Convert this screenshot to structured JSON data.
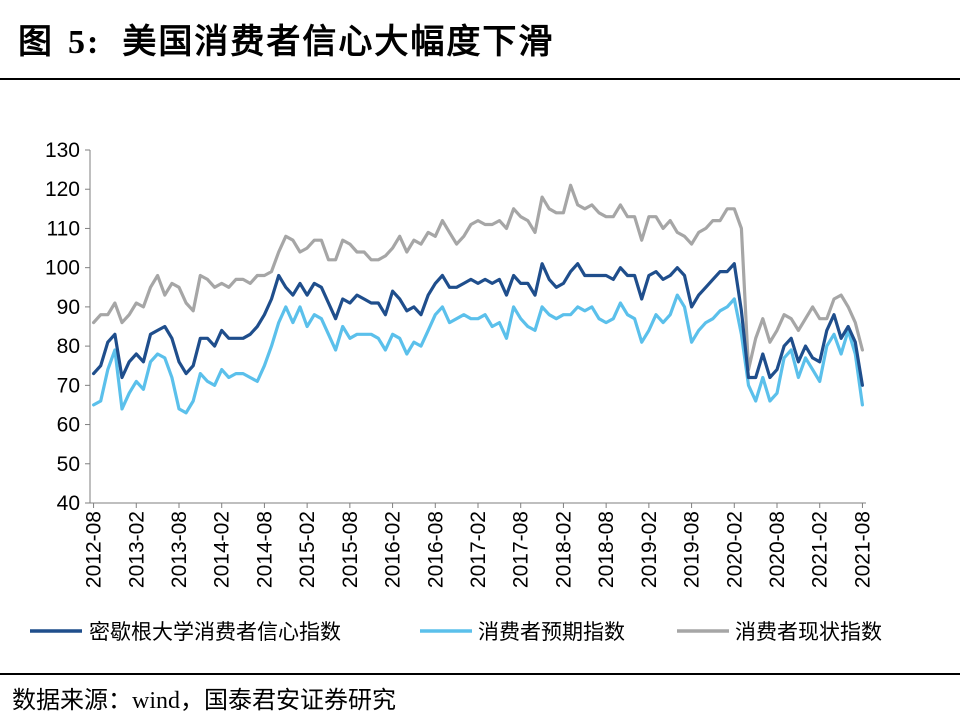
{
  "figure": {
    "label": "图",
    "number": "5:",
    "title": "美国消费者信心大幅度下滑"
  },
  "source": {
    "prefix": "数据来源：",
    "wind": "wind",
    "suffix": "，国泰君安证券研究"
  },
  "chart_data": {
    "type": "line",
    "ylim": [
      40,
      130
    ],
    "yticks": [
      40,
      50,
      60,
      70,
      80,
      90,
      100,
      110,
      120,
      130
    ],
    "xtick_labels": [
      "2012-08",
      "2013-02",
      "2013-08",
      "2014-02",
      "2014-08",
      "2015-02",
      "2015-08",
      "2016-02",
      "2016-08",
      "2017-02",
      "2017-08",
      "2018-02",
      "2018-08",
      "2019-02",
      "2019-08",
      "2020-02",
      "2020-08",
      "2021-02",
      "2021-08"
    ],
    "x": [
      "2012-08",
      "2012-09",
      "2012-10",
      "2012-11",
      "2012-12",
      "2013-01",
      "2013-02",
      "2013-03",
      "2013-04",
      "2013-05",
      "2013-06",
      "2013-07",
      "2013-08",
      "2013-09",
      "2013-10",
      "2013-11",
      "2013-12",
      "2014-01",
      "2014-02",
      "2014-03",
      "2014-04",
      "2014-05",
      "2014-06",
      "2014-07",
      "2014-08",
      "2014-09",
      "2014-10",
      "2014-11",
      "2014-12",
      "2015-01",
      "2015-02",
      "2015-03",
      "2015-04",
      "2015-05",
      "2015-06",
      "2015-07",
      "2015-08",
      "2015-09",
      "2015-10",
      "2015-11",
      "2015-12",
      "2016-01",
      "2016-02",
      "2016-03",
      "2016-04",
      "2016-05",
      "2016-06",
      "2016-07",
      "2016-08",
      "2016-09",
      "2016-10",
      "2016-11",
      "2016-12",
      "2017-01",
      "2017-02",
      "2017-03",
      "2017-04",
      "2017-05",
      "2017-06",
      "2017-07",
      "2017-08",
      "2017-09",
      "2017-10",
      "2017-11",
      "2017-12",
      "2018-01",
      "2018-02",
      "2018-03",
      "2018-04",
      "2018-05",
      "2018-06",
      "2018-07",
      "2018-08",
      "2018-09",
      "2018-10",
      "2018-11",
      "2018-12",
      "2019-01",
      "2019-02",
      "2019-03",
      "2019-04",
      "2019-05",
      "2019-06",
      "2019-07",
      "2019-08",
      "2019-09",
      "2019-10",
      "2019-11",
      "2019-12",
      "2020-01",
      "2020-02",
      "2020-03",
      "2020-04",
      "2020-05",
      "2020-06",
      "2020-07",
      "2020-08",
      "2020-09",
      "2020-10",
      "2020-11",
      "2020-12",
      "2021-01",
      "2021-02",
      "2021-03",
      "2021-04",
      "2021-05",
      "2021-06",
      "2021-07",
      "2021-08"
    ],
    "series": [
      {
        "name": "密歇根大学消费者信心指数",
        "color": "#1f4e8c",
        "values": [
          73,
          75,
          81,
          83,
          72,
          76,
          78,
          76,
          83,
          84,
          85,
          82,
          76,
          73,
          75,
          82,
          82,
          80,
          84,
          82,
          82,
          82,
          83,
          85,
          88,
          92,
          98,
          95,
          93,
          96,
          93,
          96,
          95,
          91,
          87,
          92,
          91,
          93,
          92,
          91,
          91,
          88,
          94,
          92,
          89,
          90,
          88,
          93,
          96,
          98,
          95,
          95,
          96,
          97,
          96,
          97,
          96,
          97,
          93,
          98,
          96,
          96,
          93,
          101,
          97,
          95,
          96,
          99,
          101,
          98,
          98,
          98,
          98,
          97,
          100,
          98,
          98,
          92,
          98,
          99,
          97,
          98,
          100,
          98,
          90,
          93,
          95,
          97,
          99,
          99,
          101,
          89,
          72,
          72,
          78,
          72,
          74,
          80,
          82,
          76,
          80,
          77,
          76,
          84,
          88,
          82,
          85,
          81,
          70
        ]
      },
      {
        "name": "消费者预期指数",
        "color": "#5bc0eb",
        "values": [
          65,
          66,
          74,
          79,
          64,
          68,
          71,
          69,
          76,
          78,
          77,
          72,
          64,
          63,
          66,
          73,
          71,
          70,
          74,
          72,
          73,
          73,
          72,
          71,
          75,
          80,
          86,
          90,
          86,
          90,
          85,
          88,
          87,
          83,
          79,
          85,
          82,
          83,
          83,
          83,
          82,
          79,
          83,
          82,
          78,
          81,
          80,
          84,
          88,
          90,
          86,
          87,
          88,
          87,
          87,
          88,
          85,
          86,
          82,
          90,
          87,
          85,
          84,
          90,
          88,
          87,
          88,
          88,
          90,
          89,
          90,
          87,
          86,
          87,
          91,
          88,
          87,
          81,
          84,
          88,
          86,
          88,
          93,
          90,
          81,
          84,
          86,
          87,
          89,
          90,
          92,
          83,
          70,
          66,
          72,
          66,
          68,
          77,
          79,
          72,
          77,
          74,
          71,
          80,
          83,
          78,
          84,
          78,
          65
        ]
      },
      {
        "name": "消费者现状指数",
        "color": "#a6a6a6",
        "values": [
          86,
          88,
          88,
          91,
          86,
          88,
          91,
          90,
          95,
          98,
          93,
          96,
          95,
          91,
          89,
          98,
          97,
          95,
          96,
          95,
          97,
          97,
          96,
          98,
          98,
          99,
          104,
          108,
          107,
          104,
          105,
          107,
          107,
          102,
          102,
          107,
          106,
          104,
          104,
          102,
          102,
          103,
          105,
          108,
          104,
          107,
          106,
          109,
          108,
          112,
          109,
          106,
          108,
          111,
          112,
          111,
          111,
          112,
          110,
          115,
          113,
          112,
          109,
          118,
          115,
          114,
          114,
          121,
          116,
          115,
          116,
          114,
          113,
          113,
          116,
          113,
          113,
          107,
          113,
          113,
          110,
          112,
          109,
          108,
          106,
          109,
          110,
          112,
          112,
          115,
          115,
          110,
          74,
          82,
          87,
          81,
          84,
          88,
          87,
          84,
          87,
          90,
          87,
          87,
          92,
          93,
          90,
          86,
          79
        ]
      }
    ]
  }
}
